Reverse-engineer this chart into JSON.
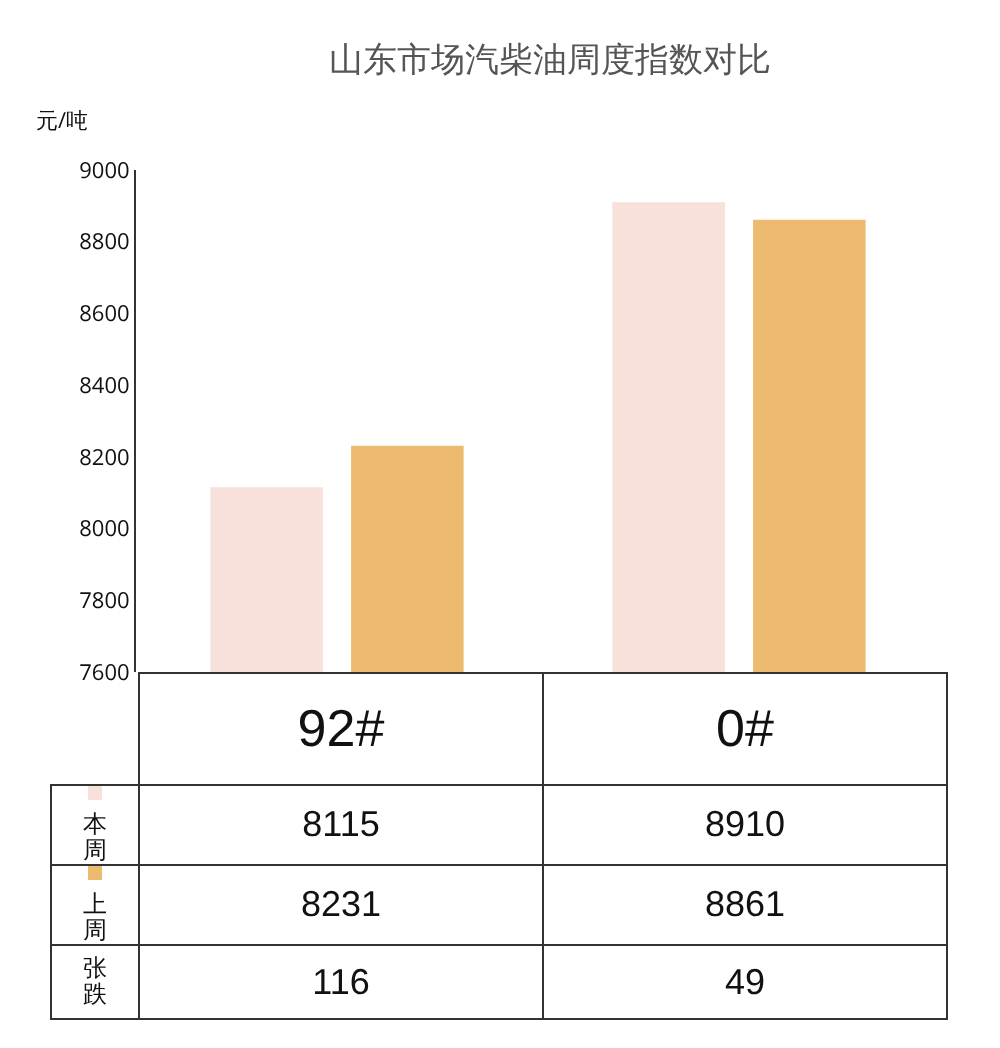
{
  "chart_data": {
    "type": "bar",
    "title": "山东市场汽柴油周度指数对比",
    "ylabel": "元/吨",
    "categories": [
      "92#",
      "0#"
    ],
    "series": [
      {
        "name": "本周",
        "color": "#f8e1da",
        "values": [
          8115,
          8910
        ]
      },
      {
        "name": "上周",
        "color": "#edbb6f",
        "values": [
          8231,
          8861
        ]
      }
    ],
    "annotations": [
      "张跌",
      "116",
      "49"
    ],
    "data_labels": true,
    "ylim": [
      7600,
      9000
    ],
    "yticks": [
      7600,
      7800,
      8000,
      8200,
      8400,
      8600,
      8800,
      9000
    ],
    "grid": false,
    "legend": "bottom left"
  }
}
